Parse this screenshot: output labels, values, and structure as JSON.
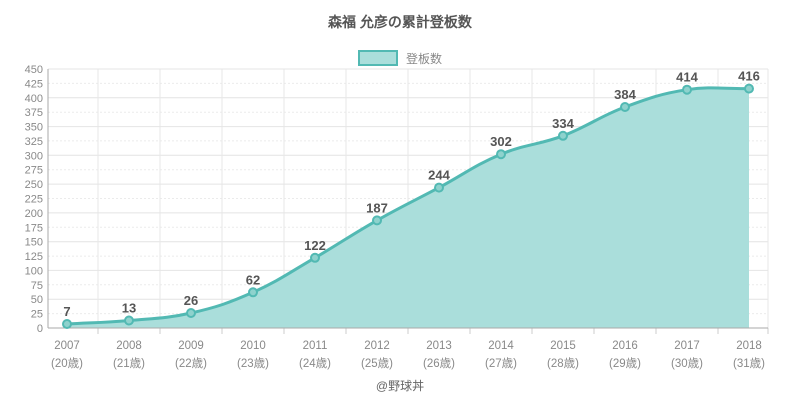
{
  "title": "森福 允彦の累計登板数",
  "legend": {
    "label": "登板数"
  },
  "credit": "@野球丼",
  "chart_data": {
    "type": "area",
    "title": "森福 允彦の累計登板数",
    "categories": [
      "2007",
      "2008",
      "2009",
      "2010",
      "2011",
      "2012",
      "2013",
      "2014",
      "2015",
      "2016",
      "2017",
      "2018"
    ],
    "category_sublabels": [
      "(20歳)",
      "(21歳)",
      "(22歳)",
      "(23歳)",
      "(24歳)",
      "(25歳)",
      "(26歳)",
      "(27歳)",
      "(28歳)",
      "(29歳)",
      "(30歳)",
      "(31歳)"
    ],
    "series": [
      {
        "name": "登板数",
        "values": [
          7,
          13,
          26,
          62,
          122,
          187,
          244,
          302,
          334,
          384,
          414,
          416
        ]
      }
    ],
    "xlabel": "",
    "ylabel": "",
    "ylim": [
      0,
      450
    ],
    "ytick_step": 25,
    "grid": true,
    "legend_position": "top",
    "data_labels_visible": true,
    "colors": {
      "line": "#52b9b3",
      "fill": "#aadedb",
      "marker_fill": "#8ed2cd",
      "data_label": "#555555",
      "axis_text": "#898989",
      "title_text": "#555555",
      "grid_major": "#e4e4e4",
      "grid_minor": "#ebebeb",
      "grid_vertical": "#e7e7e7",
      "axis_line": "#aaaaaa",
      "tick_mark": "#cccccc"
    }
  }
}
